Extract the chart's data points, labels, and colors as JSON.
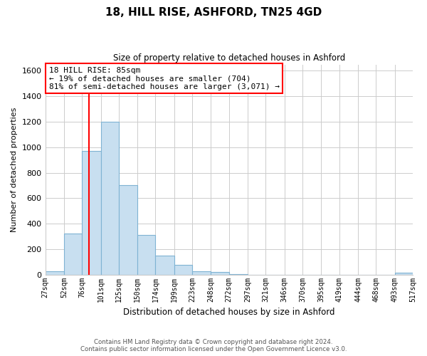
{
  "title": "18, HILL RISE, ASHFORD, TN25 4GD",
  "subtitle": "Size of property relative to detached houses in Ashford",
  "xlabel": "Distribution of detached houses by size in Ashford",
  "ylabel": "Number of detached properties",
  "bin_labels": [
    "27sqm",
    "52sqm",
    "76sqm",
    "101sqm",
    "125sqm",
    "150sqm",
    "174sqm",
    "199sqm",
    "223sqm",
    "248sqm",
    "272sqm",
    "297sqm",
    "321sqm",
    "346sqm",
    "370sqm",
    "395sqm",
    "419sqm",
    "444sqm",
    "468sqm",
    "493sqm",
    "517sqm"
  ],
  "bin_edges": [
    27,
    52,
    76,
    101,
    125,
    150,
    174,
    199,
    223,
    248,
    272,
    297,
    321,
    346,
    370,
    395,
    419,
    444,
    468,
    493,
    517
  ],
  "bar_heights": [
    25,
    320,
    970,
    1200,
    700,
    310,
    150,
    75,
    25,
    18,
    5,
    0,
    0,
    0,
    0,
    0,
    0,
    0,
    0,
    15
  ],
  "bar_color": "#c8dff0",
  "bar_edge_color": "#7fb3d3",
  "red_line_x": 85,
  "ylim": [
    0,
    1650
  ],
  "yticks": [
    0,
    200,
    400,
    600,
    800,
    1000,
    1200,
    1400,
    1600
  ],
  "annotation_line1": "18 HILL RISE: 85sqm",
  "annotation_line2": "← 19% of detached houses are smaller (704)",
  "annotation_line3": "81% of semi-detached houses are larger (3,071) →",
  "footer_line1": "Contains HM Land Registry data © Crown copyright and database right 2024.",
  "footer_line2": "Contains public sector information licensed under the Open Government Licence v3.0.",
  "background_color": "#ffffff",
  "grid_color": "#cccccc"
}
